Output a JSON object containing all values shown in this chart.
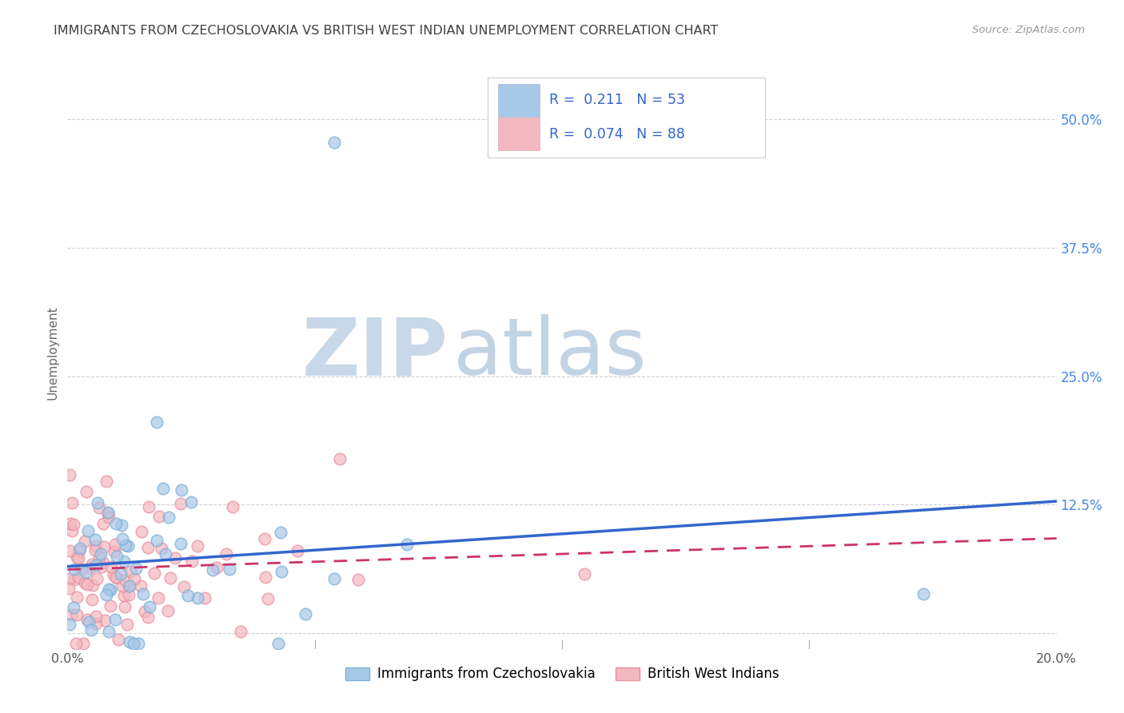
{
  "title": "IMMIGRANTS FROM CZECHOSLOVAKIA VS BRITISH WEST INDIAN UNEMPLOYMENT CORRELATION CHART",
  "source": "Source: ZipAtlas.com",
  "ylabel": "Unemployment",
  "xlim": [
    0.0,
    0.2
  ],
  "ylim": [
    -0.015,
    0.56
  ],
  "yticks": [
    0.0,
    0.125,
    0.25,
    0.375,
    0.5
  ],
  "ytick_labels": [
    "",
    "12.5%",
    "25.0%",
    "37.5%",
    "50.0%"
  ],
  "xticks": [
    0.0,
    0.05,
    0.1,
    0.15,
    0.2
  ],
  "xtick_labels": [
    "0.0%",
    "",
    "",
    "",
    "20.0%"
  ],
  "blue_color": "#a8c8e8",
  "blue_edge_color": "#7ab0d8",
  "pink_color": "#f4b8c0",
  "pink_edge_color": "#e890a0",
  "blue_line_color": "#3366cc",
  "pink_line_color": "#cc3366",
  "legend_text_color": "#3366cc",
  "watermark_zip_color": "#c8d8e8",
  "watermark_atlas_color": "#b8cce0",
  "background_color": "#ffffff",
  "grid_color": "#d0d0d0",
  "title_color": "#404040",
  "right_tick_color": "#4488ee",
  "blue_R": 0.211,
  "blue_N": 53,
  "pink_R": 0.074,
  "pink_N": 88
}
